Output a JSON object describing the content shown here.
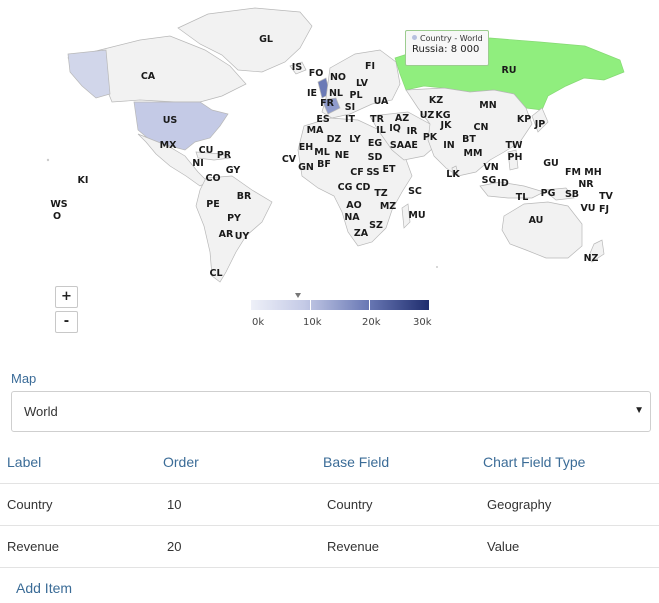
{
  "map": {
    "tooltip": {
      "series": "Country - World",
      "value": "Russia: 8 000"
    },
    "zoom": {
      "in": "+",
      "out": "-"
    },
    "legend": {
      "ticks": [
        "0k",
        "10k",
        "20k",
        "30k"
      ]
    },
    "colors": {
      "land": "#f2f2f2",
      "highlight": "#90ee7e",
      "us": "#c4cae6",
      "low": "#e6e9f4",
      "high": "#1f2d6e"
    },
    "country_labels": [
      "GL",
      "FI",
      "CA",
      "IS",
      "FO",
      "NO",
      "LV",
      "IE",
      "NL",
      "PL",
      "RU",
      "FR",
      "SI",
      "UA",
      "KZ",
      "MN",
      "US",
      "ES",
      "IT",
      "TR",
      "AZ",
      "UZ",
      "KG",
      "KP",
      "JP",
      "MA",
      "DZ",
      "LY",
      "EG",
      "IL",
      "IQ",
      "IR",
      "JK",
      "CN",
      "MX",
      "CU",
      "PR",
      "EH",
      "ML",
      "NE",
      "SA",
      "AE",
      "PK",
      "BT",
      "TW",
      "NI",
      "GY",
      "CV",
      "GN",
      "BF",
      "SD",
      "IN",
      "MM",
      "PH",
      "KI",
      "CO",
      "CF",
      "SS",
      "ET",
      "LK",
      "VN",
      "GU",
      "FM",
      "MH",
      "BR",
      "CG",
      "CD",
      "SC",
      "SG",
      "ID",
      "NR",
      "PE",
      "AO",
      "TZ",
      "PG",
      "SB",
      "TV",
      "WS",
      "PY",
      "NA",
      "MZ",
      "MU",
      "TL",
      "VU",
      "FJ",
      "O",
      "AR",
      "UY",
      "ZA",
      "SZ",
      "AU",
      "CL",
      "NZ"
    ]
  },
  "form": {
    "map_label": "Map",
    "map_value": "World",
    "select_arrow": "▼",
    "table": {
      "headers": [
        "Label",
        "Order",
        "Base Field",
        "Chart Field Type"
      ],
      "rows": [
        [
          "Country",
          "10",
          "Country",
          "Geography"
        ],
        [
          "Revenue",
          "20",
          "Revenue",
          "Value"
        ]
      ]
    },
    "add_item": "Add Item"
  }
}
